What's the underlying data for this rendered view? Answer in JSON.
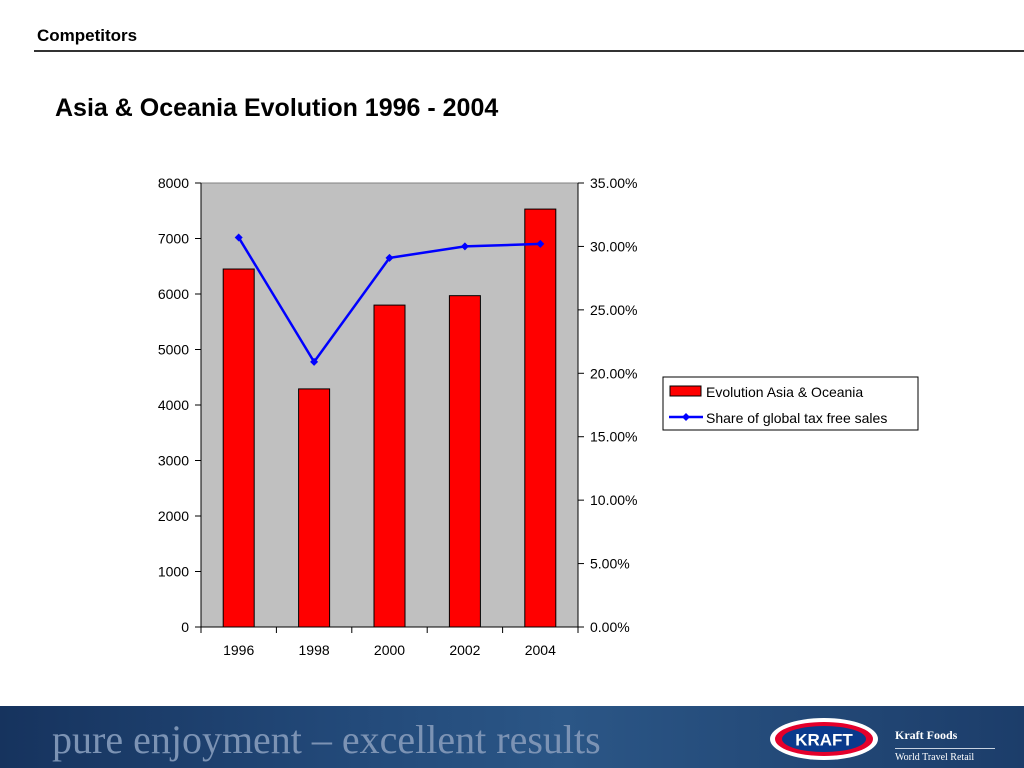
{
  "header": {
    "section": "Competitors"
  },
  "title": "Asia & Oceania Evolution 1996 - 2004",
  "chart_data": {
    "type": "bar",
    "title": "",
    "categories": [
      "1996",
      "1998",
      "2000",
      "2002",
      "2004"
    ],
    "series": [
      {
        "name": "Evolution Asia & Oceania",
        "type": "bar",
        "axis": "left",
        "color": "#ff0000",
        "values": [
          6450,
          4290,
          5800,
          5970,
          7530
        ]
      },
      {
        "name": "Share of global tax free sales",
        "type": "line",
        "axis": "right",
        "color": "#0000ff",
        "values": [
          30.7,
          20.9,
          29.1,
          30.0,
          30.2
        ]
      }
    ],
    "y_left": {
      "min": 0,
      "max": 8000,
      "ticks": [
        "0",
        "1000",
        "2000",
        "3000",
        "4000",
        "5000",
        "6000",
        "7000",
        "8000"
      ]
    },
    "y_right": {
      "min": 0,
      "max": 35,
      "ticks": [
        "0.00%",
        "5.00%",
        "10.00%",
        "15.00%",
        "20.00%",
        "25.00%",
        "30.00%",
        "35.00%"
      ]
    },
    "plot_background": "#c0c0c0",
    "grid": false,
    "legend": {
      "position": "right"
    }
  },
  "footer": {
    "tagline": "pure enjoyment – excellent results",
    "logo_text": "KRAFT",
    "brand_name": "Kraft Foods",
    "brand_sub": "World Travel Retail"
  }
}
